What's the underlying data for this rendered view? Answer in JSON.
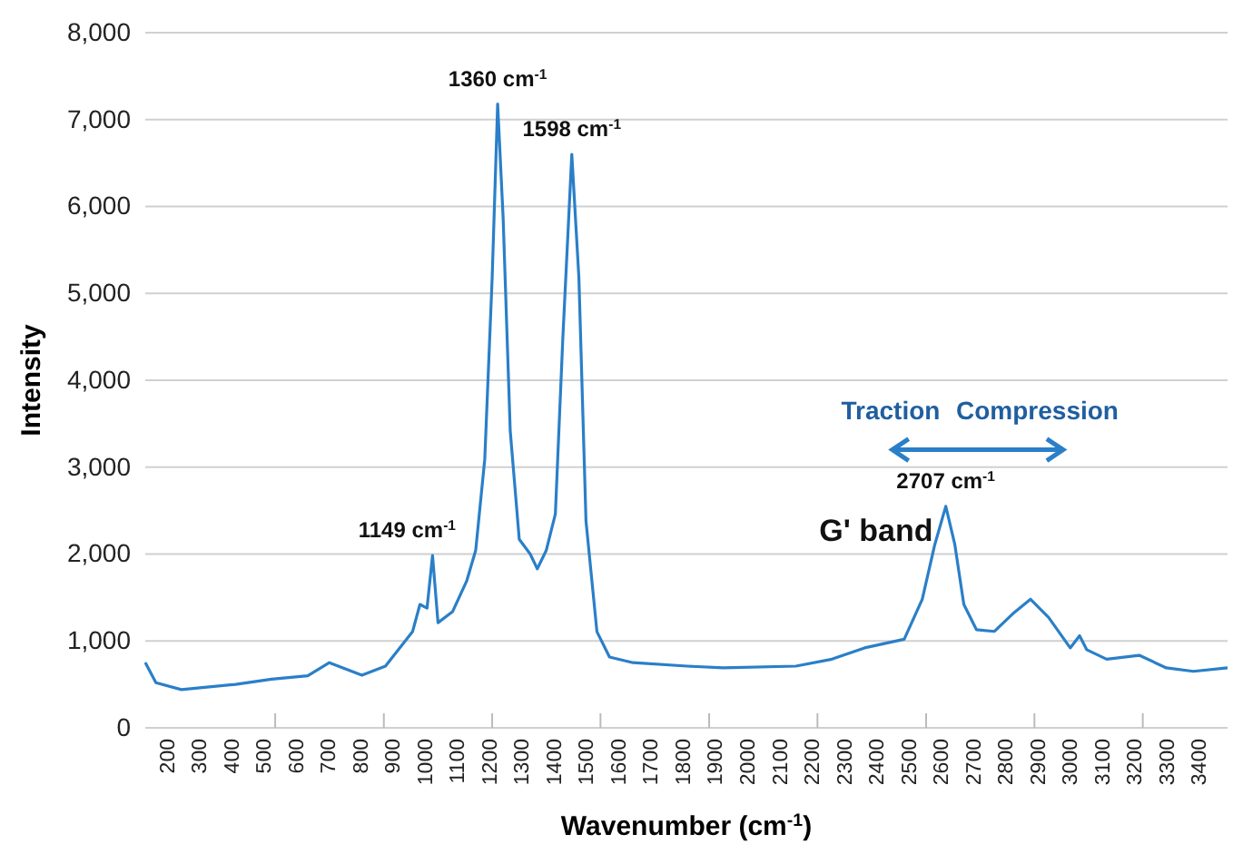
{
  "chart_data": {
    "type": "line",
    "xlabel": "Wavenumber (cm$^{-1}$)",
    "ylabel": "Intensity",
    "x": [
      133,
      166,
      245,
      413,
      525,
      637,
      704,
      805,
      878,
      962,
      985,
      1007,
      1024,
      1041,
      1086,
      1130,
      1158,
      1186,
      1209,
      1226,
      1243,
      1265,
      1293,
      1327,
      1349,
      1377,
      1405,
      1428,
      1456,
      1478,
      1500,
      1534,
      1573,
      1646,
      1814,
      1926,
      2151,
      2263,
      2364,
      2487,
      2543,
      2582,
      2616,
      2644,
      2672,
      2711,
      2767,
      2823,
      2879,
      2935,
      3002,
      3031,
      3053,
      3115,
      3216,
      3300,
      3384,
      3490
    ],
    "series": [
      {
        "color": "#2a7fc8",
        "values": [
          752,
          520,
          440,
          500,
          560,
          600,
          750,
          605,
          710,
          1106,
          1420,
          1378,
          1983,
          1210,
          1336,
          1690,
          2045,
          3090,
          5180,
          7180,
          5870,
          3420,
          2170,
          2000,
          1830,
          2045,
          2460,
          4470,
          6600,
          5180,
          2380,
          1106,
          814,
          750,
          710,
          690,
          710,
          790,
          920,
          1020,
          1480,
          2110,
          2550,
          2110,
          1420,
          1130,
          1110,
          1310,
          1480,
          1270,
          920,
          1060,
          900,
          790,
          835,
          690,
          650,
          690
        ]
      }
    ],
    "xlim": [
      133,
      3490
    ],
    "xticks": [
      200,
      300,
      400,
      500,
      600,
      700,
      800,
      900,
      1000,
      1100,
      1200,
      1300,
      1400,
      1500,
      1600,
      1700,
      1800,
      1900,
      2000,
      2100,
      2200,
      2300,
      2400,
      2500,
      2600,
      2700,
      2800,
      2900,
      3000,
      3100,
      3200,
      3300,
      3400,
      {
        "value": 536,
        "label": null
      },
      {
        "value": 873,
        "label": null
      },
      {
        "value": 1209,
        "label": null
      },
      {
        "value": 1545,
        "label": null
      },
      {
        "value": 1882,
        "label": null
      },
      {
        "value": 2218,
        "label": null
      },
      {
        "value": 2555,
        "label": null
      },
      {
        "value": 2891,
        "label": null
      },
      {
        "value": 3227,
        "label": null
      }
    ],
    "ylim": [
      0,
      8000
    ],
    "yticks": [
      0,
      {
        "value": 1000,
        "label": "1,000"
      },
      {
        "value": 2000,
        "label": "2,000"
      },
      {
        "value": 3000,
        "label": "3,000"
      },
      {
        "value": 4000,
        "label": "4,000"
      },
      {
        "value": 5000,
        "label": "5,000"
      },
      {
        "value": 6000,
        "label": "6,000"
      },
      {
        "value": 7000,
        "label": "7,000"
      },
      {
        "value": 8000,
        "label": "8,000"
      }
    ],
    "grid": "y",
    "marker": "none",
    "line_style": "solid",
    "annotations": [
      {
        "text": "1360 cm$^{-1}$",
        "x": 1226,
        "y": 7180
      },
      {
        "text": "1598 cm$^{-1}$",
        "x": 1456,
        "y": 6600
      },
      {
        "text": "1149 cm$^{-1}$",
        "x": 1024,
        "y": 1983
      },
      {
        "text": "2707 cm$^{-1}$",
        "x": 2616,
        "y": 2550
      },
      "G' band",
      "Traction",
      "Compression"
    ]
  }
}
